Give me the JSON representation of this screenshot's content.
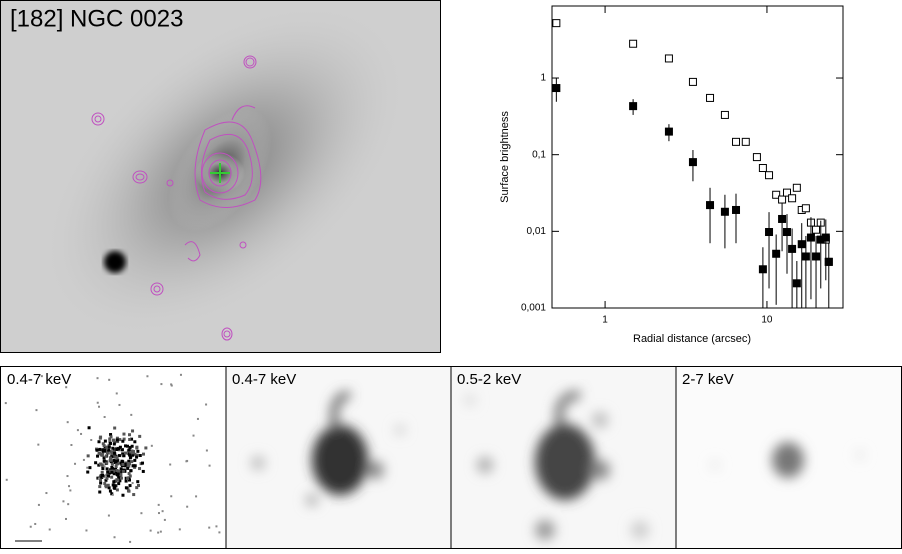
{
  "image": {
    "title": "[182] NGC 0023",
    "panels": [
      "0.4-7 keV",
      "0.4-7 keV",
      "0.5-2 keV",
      "2-7 keV"
    ]
  },
  "chart_data": {
    "type": "scatter",
    "x_label": "Radial distance (arcsec)",
    "y_label": "Surface brightness",
    "xlog": true,
    "ylog": true,
    "xlim": [
      0.47,
      29.5
    ],
    "ylim": [
      0.001,
      8.7
    ],
    "xticks": [
      1,
      10
    ],
    "yticks": [
      {
        "value": 0.001,
        "label": "0,001"
      },
      {
        "value": 0.01,
        "label": "0,01"
      },
      {
        "value": 0.1,
        "label": "0,1"
      },
      1
    ],
    "series": [
      {
        "color": "#000000",
        "marker": "open-square",
        "x": [
          0.5,
          1.49,
          2.48,
          3.49,
          4.45,
          5.5,
          6.44,
          7.4,
          8.67,
          9.44,
          10.3,
          11.4,
          12.4,
          13.3,
          14.3,
          15.3,
          16.4,
          17.4,
          18.7,
          20.1,
          21.5,
          23.1,
          24.1
        ],
        "values": [
          5.2,
          2.8,
          1.8,
          0.89,
          0.55,
          0.33,
          0.147,
          0.147,
          0.093,
          0.067,
          0.054,
          0.03,
          0.026,
          0.032,
          0.027,
          0.037,
          0.019,
          0.02,
          0.013,
          0.0105,
          0.013,
          0.0078,
          0.004
        ]
      },
      {
        "color": "#000000",
        "marker": "filled-square",
        "x": [
          0.5,
          1.49,
          2.48,
          3.49,
          4.45,
          5.5,
          6.44,
          9.44,
          10.3,
          11.4,
          12.4,
          13.3,
          14.3,
          15.3,
          16.4,
          17.4,
          18.7,
          20.1,
          21.5,
          23.1,
          24.1
        ],
        "values": [
          0.74,
          0.43,
          0.2,
          0.08,
          0.022,
          0.018,
          0.019,
          0.0032,
          0.0098,
          0.0051,
          0.0145,
          0.0098,
          0.0059,
          0.0021,
          0.0068,
          0.0047,
          0.0083,
          0.0047,
          0.0078,
          0.0083,
          0.004
        ],
        "errors": [
          0.25,
          0.1,
          0.05,
          0.035,
          0.015,
          0.012,
          0.012,
          0.003,
          0.008,
          0.004,
          0.009,
          0.007,
          0.005,
          0.002,
          0.006,
          0.004,
          0.007,
          0.004,
          0.006,
          0.006,
          0.003
        ]
      }
    ]
  }
}
